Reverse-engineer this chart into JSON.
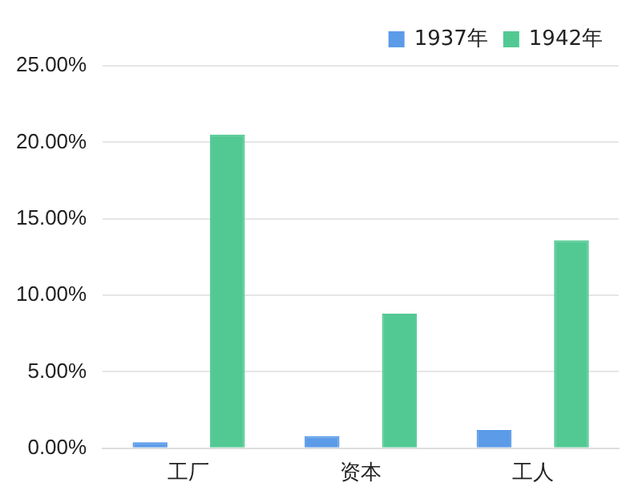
{
  "chart_data": {
    "type": "bar",
    "categories": [
      "工厂",
      "资本",
      "工人"
    ],
    "series": [
      {
        "name": "1937年",
        "color": "#5b9be8",
        "values": [
          0.4,
          0.8,
          1.2
        ]
      },
      {
        "name": "1942年",
        "color": "#52c992",
        "values": [
          20.5,
          8.8,
          13.6
        ]
      }
    ],
    "ylim": [
      0,
      25
    ],
    "yticks": [
      {
        "value": 0,
        "label": "0.00%"
      },
      {
        "value": 5,
        "label": "5.00%"
      },
      {
        "value": 10,
        "label": "10.00%"
      },
      {
        "value": 15,
        "label": "15.00%"
      },
      {
        "value": 20,
        "label": "20.00%"
      },
      {
        "value": 25,
        "label": "25.00%"
      }
    ],
    "grid": "y",
    "legend": "top right"
  }
}
